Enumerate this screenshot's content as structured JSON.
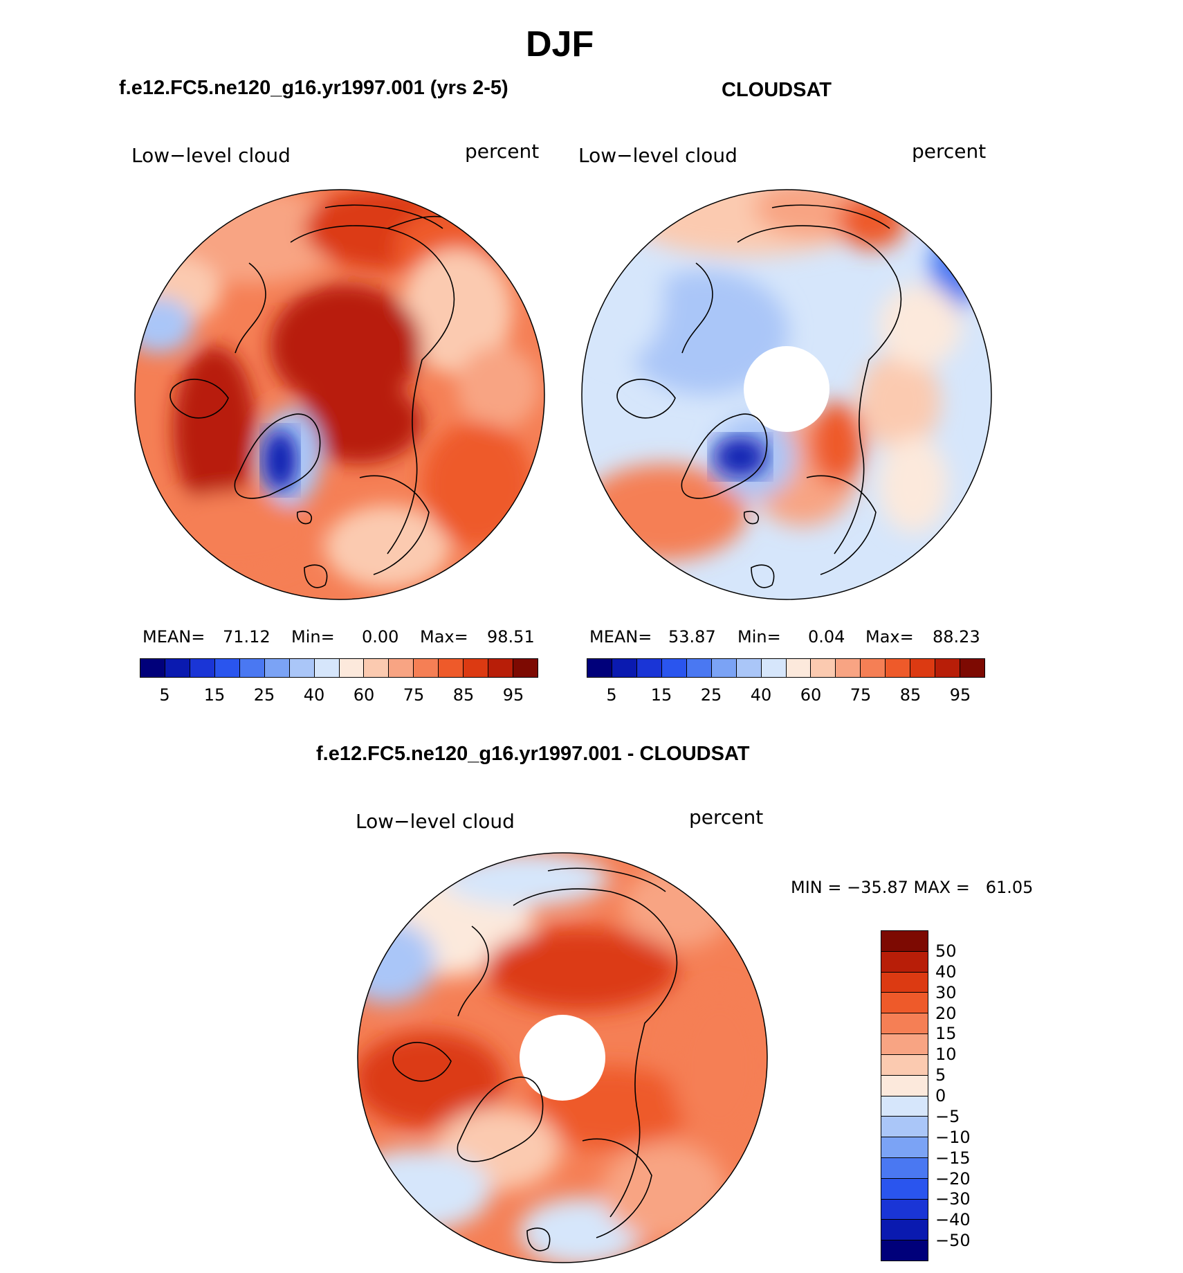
{
  "title": "DJF",
  "chart_data": [
    {
      "type": "heatmap",
      "panel": "model",
      "title": "f.e12.FC5.ne120_g16.yr1997.001 (yrs 2-5)",
      "variable": "Low−level cloud",
      "units": "percent",
      "stats_text": [
        "MEAN=",
        "71.12",
        "Min=",
        "0.00",
        "Max=",
        "98.51"
      ],
      "stats": {
        "mean": 71.12,
        "min": 0.0,
        "max": 98.51
      },
      "colorbar_ticks": [
        "5",
        "15",
        "25",
        "40",
        "60",
        "75",
        "85",
        "95"
      ],
      "colorbar_levels": [
        5,
        10,
        15,
        20,
        25,
        30,
        40,
        50,
        60,
        65,
        75,
        80,
        85,
        90,
        95
      ],
      "projection": "north polar stereographic"
    },
    {
      "type": "heatmap",
      "panel": "observations",
      "title": "CLOUDSAT",
      "variable": "Low−level cloud",
      "units": "percent",
      "stats_text": [
        "MEAN=",
        "53.87",
        "Min=",
        "0.04",
        "Max=",
        "88.23"
      ],
      "stats": {
        "mean": 53.87,
        "min": 0.04,
        "max": 88.23
      },
      "colorbar_ticks": [
        "5",
        "15",
        "25",
        "40",
        "60",
        "75",
        "85",
        "95"
      ],
      "colorbar_levels": [
        5,
        10,
        15,
        20,
        25,
        30,
        40,
        50,
        60,
        65,
        75,
        80,
        85,
        90,
        95
      ],
      "projection": "north polar stereographic"
    },
    {
      "type": "heatmap",
      "panel": "difference",
      "title": "f.e12.FC5.ne120_g16.yr1997.001 - CLOUDSAT",
      "variable": "Low−level cloud",
      "units": "percent",
      "stats_text": "MIN = −35.87 MAX =   61.05",
      "stats": {
        "min": -35.87,
        "max": 61.05
      },
      "colorbar_ticks": [
        "50",
        "40",
        "30",
        "20",
        "15",
        "10",
        "5",
        "0",
        "−5",
        "−10",
        "−15",
        "−20",
        "−30",
        "−40",
        "−50"
      ],
      "projection": "north polar stereographic"
    }
  ],
  "colors": {
    "seq": [
      "#00007a",
      "#0a1ab0",
      "#1a35d6",
      "#2a55ee",
      "#4a78f2",
      "#7ba3f5",
      "#aac6f8",
      "#d6e6fb",
      "#fce9dc",
      "#fbcab0",
      "#f8a483",
      "#f57f55",
      "#ee5a2a",
      "#dc3a12",
      "#b81e08",
      "#7d0a02"
    ],
    "div": [
      "#7d0a02",
      "#b81e08",
      "#dc3a12",
      "#ee5a2a",
      "#f57f55",
      "#f8a483",
      "#fbcab0",
      "#fce9dc",
      "#d6e6fb",
      "#aac6f8",
      "#7ba3f5",
      "#4a78f2",
      "#2a55ee",
      "#1a35d6",
      "#0a1ab0",
      "#00007a"
    ]
  }
}
